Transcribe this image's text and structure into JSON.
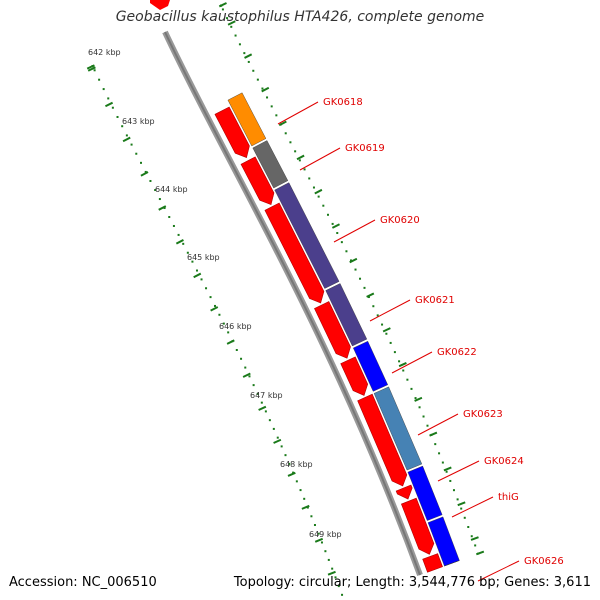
{
  "title": "Geobacillus kaustophilus HTA426, complete genome",
  "accession_text": "Accession: NC_006510",
  "summary_text": "Topology: circular; Length: 3,544,776 bp; Genes: 3,611",
  "ticks": [
    "642 kbp",
    "643 kbp",
    "644 kbp",
    "645 kbp",
    "646 kbp",
    "647 kbp",
    "648 kbp",
    "649 kbp"
  ],
  "genes": [
    {
      "label": "GK0618",
      "color": "#ff8c00"
    },
    {
      "label": "GK0619",
      "color": "#666666"
    },
    {
      "label": "GK0620",
      "color": "#4b3f8c"
    },
    {
      "label": "GK0621",
      "color": "#4b3f8c"
    },
    {
      "label": "GK0622",
      "color": "#0000ff"
    },
    {
      "label": "GK0623",
      "color": "#4682b4"
    },
    {
      "label": "GK0624",
      "color": "#0000ff"
    },
    {
      "label": "thiG",
      "color": "#0000ff"
    },
    {
      "label": "GK0626",
      "color": "#0000ff"
    }
  ],
  "colors": {
    "cds": "#ff0000",
    "backbone": "#808080",
    "tick_dots": "#1a7a1a",
    "label": "#e00000"
  }
}
